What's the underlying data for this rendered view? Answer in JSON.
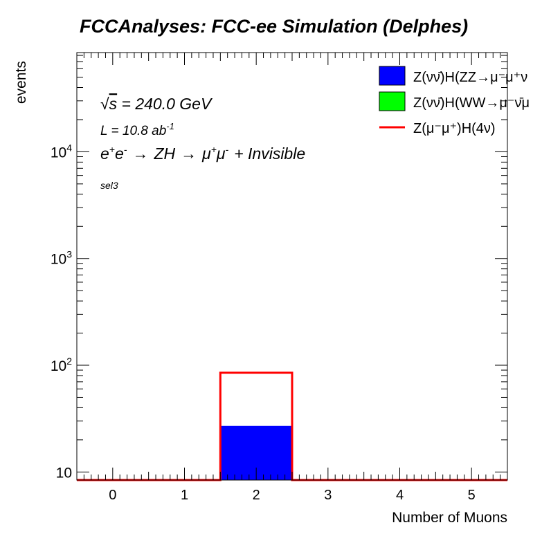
{
  "chart_data": {
    "type": "bar",
    "title": "FCCAnalyses: FCC-ee Simulation (Delphes)",
    "xlabel": "Number of Muons",
    "ylabel": "events",
    "xlim": [
      -0.5,
      5.5
    ],
    "ylim": [
      8.4,
      85000
    ],
    "yscale": "log",
    "grid": false,
    "legend_position": "top-right",
    "x_ticks": [
      "0",
      "1",
      "2",
      "3",
      "4",
      "5"
    ],
    "y_ticks": [
      {
        "value": 10,
        "label": "10",
        "exp": ""
      },
      {
        "value": 100,
        "label": "10",
        "exp": "2"
      },
      {
        "value": 1000,
        "label": "10",
        "exp": "3"
      },
      {
        "value": 10000,
        "label": "10",
        "exp": "4"
      }
    ],
    "bin_edges": [
      -0.5,
      0.5,
      1.5,
      2.5,
      3.5,
      4.5,
      5.5
    ],
    "series": [
      {
        "name": "Z(νν̄)H(ZZ→μ⁻μ⁺ν",
        "kind": "stack-fill",
        "color": "#0000ff",
        "values": [
          0,
          0,
          27,
          0,
          0,
          0
        ]
      },
      {
        "name": "Z(νν̄)H(WW→μ⁻ν̄μ",
        "kind": "stack-fill",
        "color": "#00ff00",
        "values": [
          0,
          0,
          0,
          0,
          0,
          0
        ]
      },
      {
        "name": "Z(μ⁻μ⁺)H(4ν)",
        "kind": "line",
        "color": "#ff0000",
        "values": [
          0,
          0,
          85,
          0,
          0,
          0
        ]
      }
    ],
    "annotations": {
      "sqrt_s_symbol": "√",
      "sqrt_s_var": "s",
      "sqrt_s_text": " = 240.0 GeV",
      "lumi_text": "L = 10.8 ab",
      "lumi_exp": "-1",
      "process": {
        "e": "e",
        "plus": "+",
        "minus": "-",
        "arrow": "→",
        "zh": "ZH",
        "mu": "μ",
        "tail": "+ Invisible"
      },
      "selection": "sel3"
    }
  }
}
